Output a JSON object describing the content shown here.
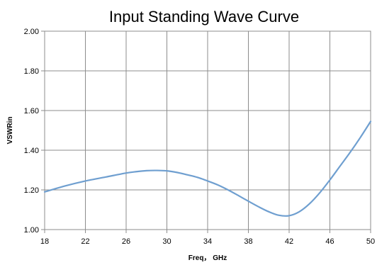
{
  "chart_data": {
    "type": "line",
    "title": "Input Standing Wave Curve",
    "xlabel": "Freq， GHz",
    "ylabel": "VSWRin",
    "xlim": [
      18,
      50
    ],
    "ylim": [
      1.0,
      2.0
    ],
    "x_ticks": [
      "18",
      "22",
      "26",
      "30",
      "34",
      "38",
      "42",
      "46",
      "50"
    ],
    "y_ticks": [
      "1.00",
      "1.20",
      "1.40",
      "1.60",
      "1.80",
      "2.00"
    ],
    "grid": true,
    "series_color": "#6f9fd0",
    "series": [
      {
        "x": [
          18,
          20,
          22,
          24,
          26,
          27,
          28,
          29,
          30,
          31,
          32,
          33,
          34,
          35,
          36,
          37,
          38,
          39,
          40,
          41,
          42,
          43,
          44,
          45,
          46,
          47,
          48,
          49,
          50
        ],
        "values": [
          1.19,
          1.22,
          1.245,
          1.265,
          1.285,
          1.292,
          1.297,
          1.298,
          1.296,
          1.288,
          1.276,
          1.263,
          1.245,
          1.225,
          1.2,
          1.172,
          1.143,
          1.115,
          1.09,
          1.072,
          1.07,
          1.09,
          1.13,
          1.185,
          1.25,
          1.32,
          1.39,
          1.465,
          1.545
        ]
      }
    ]
  }
}
